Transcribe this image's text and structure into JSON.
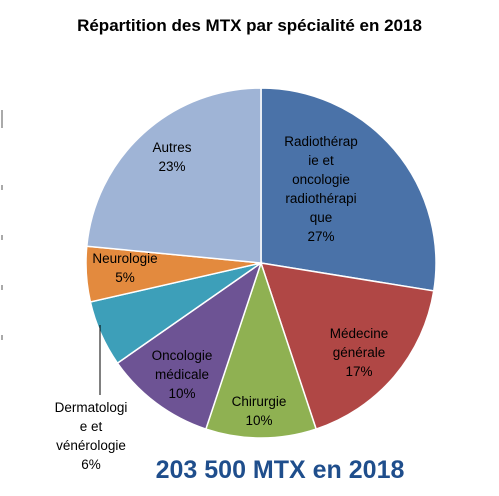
{
  "chart_data": {
    "type": "pie",
    "title": "Répartition des MTX par spécialité en 2018",
    "slices": [
      {
        "label": "Radiothérapie et oncologie radiothérapique",
        "lines": [
          "Radiothérap",
          "ie et",
          "oncologie",
          "radiothérapi",
          "que"
        ],
        "percent_label": "27%",
        "value": 27,
        "color": "#4a72a8"
      },
      {
        "label": "Médecine générale",
        "lines": [
          "Médecine",
          "générale"
        ],
        "percent_label": "17%",
        "value": 17,
        "color": "#b04745"
      },
      {
        "label": "Chirurgie",
        "lines": [
          "Chirurgie"
        ],
        "percent_label": "10%",
        "value": 10,
        "color": "#8fb152"
      },
      {
        "label": "Oncologie médicale",
        "lines": [
          "Oncologie",
          "médicale"
        ],
        "percent_label": "10%",
        "value": 10,
        "color": "#6d5394"
      },
      {
        "label": "Dermatologie et vénérologie",
        "lines": [
          "Dermatologi",
          "e et",
          "vénérologie"
        ],
        "percent_label": "6%",
        "value": 6,
        "color": "#3d9fb9"
      },
      {
        "label": "Neurologie",
        "lines": [
          "Neurologie"
        ],
        "percent_label": "5%",
        "value": 5,
        "color": "#e38a3e"
      },
      {
        "label": "Autres",
        "lines": [
          "Autres"
        ],
        "percent_label": "23%",
        "value": 23,
        "color": "#9fb4d6"
      }
    ],
    "start_angle_deg": 0,
    "direction": "clockwise",
    "legend": "none"
  },
  "footer": "203 500 MTX en 2018"
}
